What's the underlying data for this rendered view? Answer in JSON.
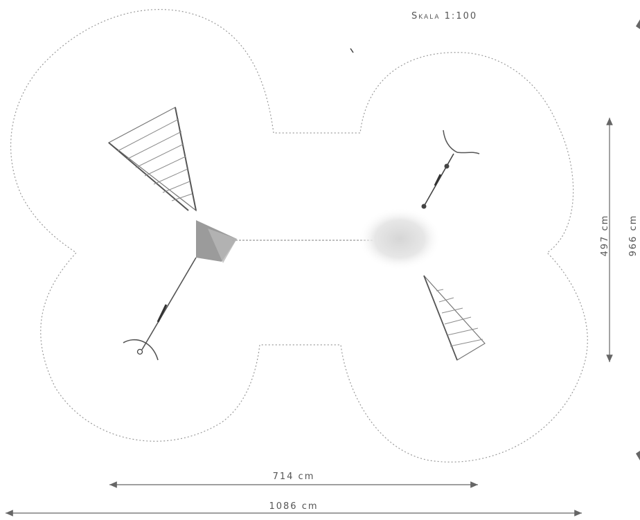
{
  "scale_label": "Skala 1:100",
  "dimensions": {
    "inner_width": "714 cm",
    "outer_width": "1086 cm",
    "inner_height": "497 cm",
    "outer_height": "966 cm"
  },
  "colors": {
    "outline": "#9a9a9a",
    "dimension_line": "#666666",
    "net": "#8c8c8c",
    "rope": "#555555",
    "climber_fill": "#5a5a5a"
  }
}
